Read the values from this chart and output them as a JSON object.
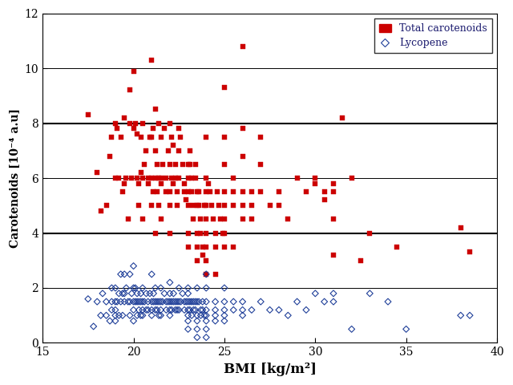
{
  "title": "",
  "xlabel": "BMI [kg/m²]",
  "ylabel": "Carotenoids [10⁻⁴ a.u]",
  "xlim": [
    15,
    40
  ],
  "ylim": [
    0,
    12
  ],
  "xticks": [
    15,
    20,
    25,
    30,
    35,
    40
  ],
  "yticks": [
    0,
    2,
    4,
    6,
    8,
    10,
    12
  ],
  "total_carotenoids_color": "#CC0000",
  "lycopene_color": "#1F3F99",
  "background_color": "#FFFFFF",
  "total_carotenoids": [
    [
      17.5,
      8.3
    ],
    [
      18.0,
      6.2
    ],
    [
      18.2,
      4.8
    ],
    [
      18.5,
      5.0
    ],
    [
      18.7,
      6.8
    ],
    [
      18.8,
      7.5
    ],
    [
      19.0,
      8.0
    ],
    [
      19.0,
      6.0
    ],
    [
      19.1,
      7.8
    ],
    [
      19.2,
      6.0
    ],
    [
      19.3,
      7.5
    ],
    [
      19.4,
      5.5
    ],
    [
      19.5,
      8.2
    ],
    [
      19.5,
      5.8
    ],
    [
      19.6,
      6.0
    ],
    [
      19.7,
      4.5
    ],
    [
      19.8,
      9.2
    ],
    [
      19.8,
      8.0
    ],
    [
      19.9,
      6.0
    ],
    [
      20.0,
      9.9
    ],
    [
      20.0,
      7.8
    ],
    [
      20.1,
      8.0
    ],
    [
      20.2,
      7.6
    ],
    [
      20.2,
      6.0
    ],
    [
      20.3,
      5.8
    ],
    [
      20.3,
      5.0
    ],
    [
      20.4,
      7.5
    ],
    [
      20.4,
      6.2
    ],
    [
      20.5,
      8.0
    ],
    [
      20.5,
      6.0
    ],
    [
      20.5,
      4.5
    ],
    [
      20.6,
      6.5
    ],
    [
      20.7,
      7.0
    ],
    [
      20.8,
      6.0
    ],
    [
      20.8,
      5.8
    ],
    [
      20.9,
      7.5
    ],
    [
      21.0,
      10.3
    ],
    [
      21.0,
      7.5
    ],
    [
      21.0,
      6.0
    ],
    [
      21.0,
      5.0
    ],
    [
      21.1,
      7.8
    ],
    [
      21.1,
      5.5
    ],
    [
      21.2,
      8.5
    ],
    [
      21.2,
      7.0
    ],
    [
      21.2,
      6.0
    ],
    [
      21.2,
      4.0
    ],
    [
      21.3,
      6.5
    ],
    [
      21.3,
      5.5
    ],
    [
      21.4,
      8.0
    ],
    [
      21.4,
      6.0
    ],
    [
      21.4,
      5.0
    ],
    [
      21.5,
      7.5
    ],
    [
      21.5,
      6.0
    ],
    [
      21.5,
      5.8
    ],
    [
      21.5,
      4.5
    ],
    [
      21.6,
      6.5
    ],
    [
      21.7,
      7.8
    ],
    [
      21.8,
      6.0
    ],
    [
      21.8,
      5.5
    ],
    [
      21.9,
      7.0
    ],
    [
      22.0,
      8.0
    ],
    [
      22.0,
      6.5
    ],
    [
      22.0,
      5.5
    ],
    [
      22.0,
      5.0
    ],
    [
      22.0,
      4.0
    ],
    [
      22.1,
      7.5
    ],
    [
      22.1,
      6.0
    ],
    [
      22.2,
      7.2
    ],
    [
      22.2,
      5.8
    ],
    [
      22.3,
      6.5
    ],
    [
      22.3,
      6.0
    ],
    [
      22.4,
      5.5
    ],
    [
      22.4,
      5.0
    ],
    [
      22.5,
      7.8
    ],
    [
      22.5,
      7.0
    ],
    [
      22.5,
      6.0
    ],
    [
      22.6,
      7.5
    ],
    [
      22.7,
      6.5
    ],
    [
      22.8,
      5.8
    ],
    [
      22.8,
      5.5
    ],
    [
      22.9,
      5.2
    ],
    [
      23.0,
      6.5
    ],
    [
      23.0,
      6.0
    ],
    [
      23.0,
      5.5
    ],
    [
      23.0,
      5.0
    ],
    [
      23.0,
      4.0
    ],
    [
      23.0,
      3.5
    ],
    [
      23.1,
      7.0
    ],
    [
      23.1,
      6.5
    ],
    [
      23.2,
      6.0
    ],
    [
      23.2,
      5.5
    ],
    [
      23.3,
      5.0
    ],
    [
      23.3,
      4.5
    ],
    [
      23.4,
      6.5
    ],
    [
      23.4,
      6.0
    ],
    [
      23.5,
      5.5
    ],
    [
      23.5,
      5.0
    ],
    [
      23.5,
      4.0
    ],
    [
      23.5,
      3.5
    ],
    [
      23.5,
      3.0
    ],
    [
      23.6,
      5.5
    ],
    [
      23.6,
      5.0
    ],
    [
      23.7,
      4.5
    ],
    [
      23.7,
      4.0
    ],
    [
      23.8,
      3.5
    ],
    [
      23.8,
      3.2
    ],
    [
      23.9,
      5.0
    ],
    [
      24.0,
      7.5
    ],
    [
      24.0,
      6.0
    ],
    [
      24.0,
      5.5
    ],
    [
      24.0,
      5.0
    ],
    [
      24.0,
      4.5
    ],
    [
      24.0,
      4.0
    ],
    [
      24.0,
      3.5
    ],
    [
      24.0,
      3.0
    ],
    [
      24.0,
      2.5
    ],
    [
      24.1,
      5.8
    ],
    [
      24.2,
      5.5
    ],
    [
      24.3,
      5.0
    ],
    [
      24.4,
      4.5
    ],
    [
      24.5,
      4.0
    ],
    [
      24.5,
      3.5
    ],
    [
      24.5,
      2.5
    ],
    [
      24.6,
      5.5
    ],
    [
      24.7,
      5.0
    ],
    [
      24.8,
      4.5
    ],
    [
      24.9,
      4.0
    ],
    [
      25.0,
      9.3
    ],
    [
      25.0,
      7.5
    ],
    [
      25.0,
      6.5
    ],
    [
      25.0,
      5.5
    ],
    [
      25.0,
      5.0
    ],
    [
      25.0,
      4.5
    ],
    [
      25.0,
      4.0
    ],
    [
      25.0,
      3.5
    ],
    [
      25.5,
      6.0
    ],
    [
      25.5,
      5.5
    ],
    [
      25.5,
      5.0
    ],
    [
      25.5,
      3.5
    ],
    [
      26.0,
      10.8
    ],
    [
      26.0,
      7.8
    ],
    [
      26.0,
      6.8
    ],
    [
      26.0,
      5.5
    ],
    [
      26.0,
      5.0
    ],
    [
      26.0,
      4.5
    ],
    [
      26.5,
      5.5
    ],
    [
      26.5,
      5.0
    ],
    [
      26.5,
      4.5
    ],
    [
      27.0,
      7.5
    ],
    [
      27.0,
      6.5
    ],
    [
      27.0,
      5.5
    ],
    [
      27.5,
      5.0
    ],
    [
      28.0,
      5.5
    ],
    [
      28.0,
      5.0
    ],
    [
      28.5,
      4.5
    ],
    [
      29.0,
      6.0
    ],
    [
      29.5,
      5.5
    ],
    [
      30.0,
      6.0
    ],
    [
      30.0,
      5.8
    ],
    [
      30.5,
      5.5
    ],
    [
      30.5,
      5.2
    ],
    [
      31.0,
      5.8
    ],
    [
      31.0,
      5.5
    ],
    [
      31.0,
      4.5
    ],
    [
      31.0,
      3.2
    ],
    [
      31.5,
      8.2
    ],
    [
      32.0,
      6.0
    ],
    [
      32.5,
      3.0
    ],
    [
      33.0,
      4.0
    ],
    [
      34.5,
      3.5
    ],
    [
      38.0,
      4.2
    ],
    [
      38.5,
      3.3
    ]
  ],
  "lycopene": [
    [
      17.5,
      1.6
    ],
    [
      17.8,
      0.6
    ],
    [
      18.0,
      1.5
    ],
    [
      18.2,
      1.0
    ],
    [
      18.3,
      1.8
    ],
    [
      18.5,
      1.5
    ],
    [
      18.5,
      1.0
    ],
    [
      18.7,
      0.8
    ],
    [
      18.8,
      2.0
    ],
    [
      18.8,
      1.5
    ],
    [
      18.8,
      1.2
    ],
    [
      19.0,
      2.0
    ],
    [
      19.0,
      1.5
    ],
    [
      19.0,
      1.2
    ],
    [
      19.0,
      1.0
    ],
    [
      19.0,
      0.8
    ],
    [
      19.1,
      1.5
    ],
    [
      19.2,
      1.8
    ],
    [
      19.2,
      1.0
    ],
    [
      19.3,
      2.5
    ],
    [
      19.3,
      1.5
    ],
    [
      19.4,
      1.8
    ],
    [
      19.4,
      1.0
    ],
    [
      19.5,
      2.5
    ],
    [
      19.5,
      1.8
    ],
    [
      19.5,
      1.5
    ],
    [
      19.6,
      2.0
    ],
    [
      19.7,
      1.5
    ],
    [
      19.8,
      2.5
    ],
    [
      19.8,
      1.5
    ],
    [
      19.8,
      1.0
    ],
    [
      19.9,
      1.8
    ],
    [
      20.0,
      2.8
    ],
    [
      20.0,
      2.0
    ],
    [
      20.0,
      1.5
    ],
    [
      20.0,
      1.2
    ],
    [
      20.0,
      0.8
    ],
    [
      20.1,
      2.0
    ],
    [
      20.1,
      1.5
    ],
    [
      20.2,
      1.8
    ],
    [
      20.2,
      1.5
    ],
    [
      20.2,
      1.0
    ],
    [
      20.3,
      1.5
    ],
    [
      20.3,
      1.2
    ],
    [
      20.4,
      1.8
    ],
    [
      20.4,
      1.5
    ],
    [
      20.4,
      1.0
    ],
    [
      20.5,
      2.0
    ],
    [
      20.5,
      1.5
    ],
    [
      20.5,
      1.2
    ],
    [
      20.5,
      1.0
    ],
    [
      20.6,
      1.5
    ],
    [
      20.7,
      1.8
    ],
    [
      20.7,
      1.2
    ],
    [
      20.8,
      1.5
    ],
    [
      20.8,
      1.2
    ],
    [
      20.9,
      1.8
    ],
    [
      21.0,
      2.5
    ],
    [
      21.0,
      1.5
    ],
    [
      21.0,
      1.2
    ],
    [
      21.0,
      1.0
    ],
    [
      21.1,
      1.8
    ],
    [
      21.1,
      1.5
    ],
    [
      21.2,
      2.0
    ],
    [
      21.2,
      1.5
    ],
    [
      21.2,
      1.2
    ],
    [
      21.3,
      1.5
    ],
    [
      21.3,
      1.2
    ],
    [
      21.4,
      1.5
    ],
    [
      21.4,
      1.0
    ],
    [
      21.5,
      2.0
    ],
    [
      21.5,
      1.5
    ],
    [
      21.5,
      1.2
    ],
    [
      21.5,
      1.0
    ],
    [
      21.6,
      1.5
    ],
    [
      21.7,
      1.8
    ],
    [
      21.8,
      1.5
    ],
    [
      21.8,
      1.2
    ],
    [
      21.9,
      1.5
    ],
    [
      22.0,
      2.2
    ],
    [
      22.0,
      1.8
    ],
    [
      22.0,
      1.5
    ],
    [
      22.0,
      1.2
    ],
    [
      22.0,
      1.0
    ],
    [
      22.1,
      1.5
    ],
    [
      22.1,
      1.2
    ],
    [
      22.2,
      1.8
    ],
    [
      22.2,
      1.5
    ],
    [
      22.3,
      1.5
    ],
    [
      22.3,
      1.2
    ],
    [
      22.4,
      1.5
    ],
    [
      22.4,
      1.2
    ],
    [
      22.5,
      2.0
    ],
    [
      22.5,
      1.5
    ],
    [
      22.5,
      1.2
    ],
    [
      22.6,
      1.5
    ],
    [
      22.7,
      1.8
    ],
    [
      22.8,
      1.5
    ],
    [
      22.8,
      1.2
    ],
    [
      22.9,
      1.5
    ],
    [
      23.0,
      2.0
    ],
    [
      23.0,
      1.8
    ],
    [
      23.0,
      1.5
    ],
    [
      23.0,
      1.2
    ],
    [
      23.0,
      1.0
    ],
    [
      23.0,
      0.8
    ],
    [
      23.0,
      0.5
    ],
    [
      23.1,
      1.5
    ],
    [
      23.1,
      1.2
    ],
    [
      23.2,
      1.5
    ],
    [
      23.2,
      1.0
    ],
    [
      23.3,
      1.5
    ],
    [
      23.3,
      1.2
    ],
    [
      23.4,
      1.5
    ],
    [
      23.4,
      1.2
    ],
    [
      23.5,
      2.0
    ],
    [
      23.5,
      1.5
    ],
    [
      23.5,
      1.0
    ],
    [
      23.5,
      0.8
    ],
    [
      23.5,
      0.5
    ],
    [
      23.5,
      0.2
    ],
    [
      23.6,
      1.5
    ],
    [
      23.7,
      1.2
    ],
    [
      23.7,
      1.0
    ],
    [
      23.8,
      1.5
    ],
    [
      23.8,
      1.2
    ],
    [
      23.9,
      1.0
    ],
    [
      24.0,
      2.5
    ],
    [
      24.0,
      2.0
    ],
    [
      24.0,
      1.5
    ],
    [
      24.0,
      1.2
    ],
    [
      24.0,
      1.0
    ],
    [
      24.0,
      0.8
    ],
    [
      24.0,
      0.5
    ],
    [
      24.0,
      0.2
    ],
    [
      24.5,
      1.5
    ],
    [
      24.5,
      1.2
    ],
    [
      24.5,
      1.0
    ],
    [
      24.5,
      0.8
    ],
    [
      25.0,
      2.0
    ],
    [
      25.0,
      1.5
    ],
    [
      25.0,
      1.2
    ],
    [
      25.0,
      1.0
    ],
    [
      25.0,
      0.8
    ],
    [
      25.5,
      1.5
    ],
    [
      25.5,
      1.2
    ],
    [
      26.0,
      1.5
    ],
    [
      26.0,
      1.2
    ],
    [
      26.0,
      1.0
    ],
    [
      26.5,
      1.2
    ],
    [
      27.0,
      1.5
    ],
    [
      27.5,
      1.2
    ],
    [
      28.0,
      1.2
    ],
    [
      28.5,
      1.0
    ],
    [
      29.0,
      1.5
    ],
    [
      29.5,
      1.2
    ],
    [
      30.0,
      1.8
    ],
    [
      30.5,
      1.5
    ],
    [
      31.0,
      1.8
    ],
    [
      31.0,
      1.5
    ],
    [
      32.0,
      0.5
    ],
    [
      33.0,
      1.8
    ],
    [
      34.0,
      1.5
    ],
    [
      35.0,
      0.5
    ],
    [
      38.0,
      1.0
    ],
    [
      38.5,
      1.0
    ]
  ],
  "thick_hlines": [
    4,
    8
  ],
  "thin_hlines": [
    0,
    2,
    6,
    10,
    12
  ]
}
